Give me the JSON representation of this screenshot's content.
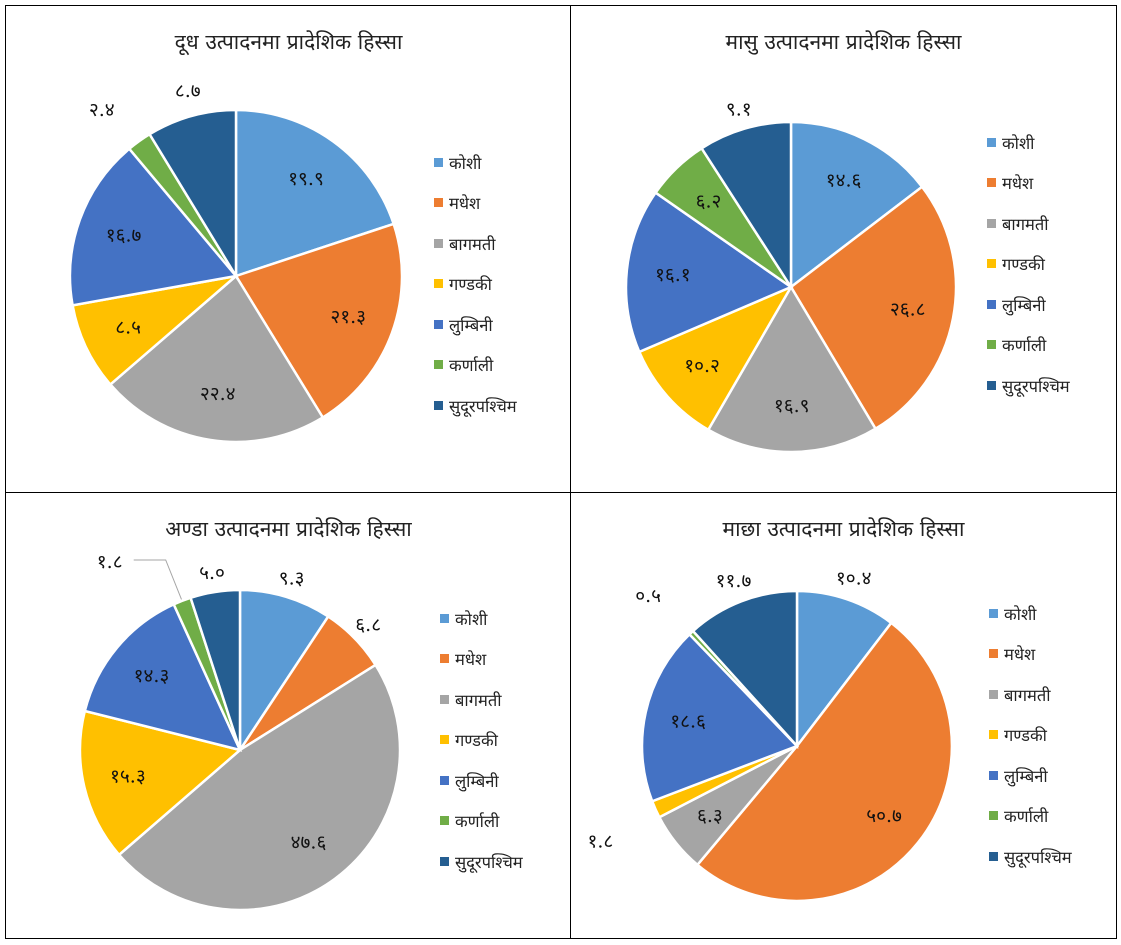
{
  "colors": {
    "koshi": "#5b9bd5",
    "madhesh": "#ed7d31",
    "bagmati": "#a5a5a5",
    "gandaki": "#ffc000",
    "lumbini": "#4472c4",
    "karnali": "#70ad47",
    "sudurpashchim": "#255e91"
  },
  "chart_data": [
    {
      "type": "pie",
      "title": "दूध उत्पादनमा प्रादेशिक हिस्सा",
      "categories": [
        "कोशी",
        "मधेश",
        "बागमती",
        "गण्डकी",
        "लुम्बिनी",
        "कर्णाली",
        "सुदूरपश्चिम"
      ],
      "values": [
        19.9,
        21.3,
        22.4,
        8.5,
        16.7,
        2.4,
        8.7
      ],
      "labels": [
        "१९.९",
        "२१.३",
        "२२.४",
        "८.५",
        "१६.७",
        "२.४",
        "८.७"
      ],
      "legend": "right"
    },
    {
      "type": "pie",
      "title": "मासु उत्पादनमा प्रादेशिक हिस्सा",
      "categories": [
        "कोशी",
        "मधेश",
        "बागमती",
        "गण्डकी",
        "लुम्बिनी",
        "कर्णाली",
        "सुदूरपश्चिम"
      ],
      "values": [
        14.6,
        26.8,
        16.9,
        10.2,
        16.1,
        6.2,
        9.1
      ],
      "labels": [
        "१४.६",
        "२६.८",
        "१६.९",
        "१०.२",
        "१६.१",
        "६.२",
        "९.१"
      ],
      "legend": "right"
    },
    {
      "type": "pie",
      "title": "अण्डा उत्पादनमा प्रादेशिक हिस्सा",
      "categories": [
        "कोशी",
        "मधेश",
        "बागमती",
        "गण्डकी",
        "लुम्बिनी",
        "कर्णाली",
        "सुदूरपश्चिम"
      ],
      "values": [
        9.3,
        6.8,
        47.6,
        15.3,
        14.3,
        1.8,
        5.0
      ],
      "labels": [
        "९.३",
        "६.८",
        "४७.६",
        "१५.३",
        "१४.३",
        "१.८",
        "५.०"
      ],
      "legend": "right"
    },
    {
      "type": "pie",
      "title": "माछा उत्पादनमा प्रादेशिक हिस्सा",
      "categories": [
        "कोशी",
        "मधेश",
        "बागमती",
        "गण्डकी",
        "लुम्बिनी",
        "कर्णाली",
        "सुदूरपश्चिम"
      ],
      "values": [
        10.4,
        50.7,
        6.3,
        1.8,
        18.6,
        0.5,
        11.7
      ],
      "labels": [
        "१०.४",
        "५०.७",
        "६.३",
        "१.८",
        "१८.६",
        "०.५",
        "११.७"
      ],
      "legend": "right"
    }
  ]
}
